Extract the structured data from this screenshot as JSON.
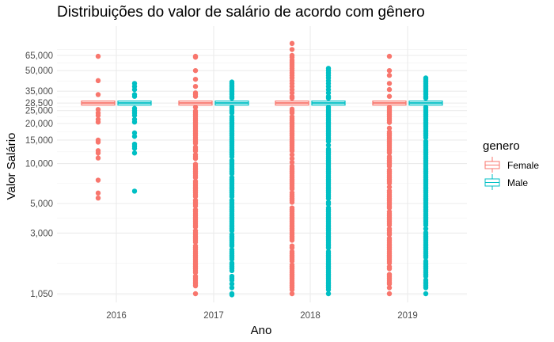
{
  "chart_data": {
    "type": "boxplot",
    "title": "Distribuições do valor de salário de acordo com gênero",
    "xlabel": "Ano",
    "ylabel": "Valor Salário",
    "y_scale": "log10",
    "y_ticks": [
      1050,
      3000,
      5000,
      10000,
      15000,
      20000,
      25000,
      28500,
      35000,
      50000,
      65000
    ],
    "y_tick_labels": [
      "1,050",
      "3,000",
      "5,000",
      "10,000",
      "15,000",
      "20,000",
      "25,000",
      "28,500",
      "35,000",
      "50,000",
      "65,000"
    ],
    "ylim": [
      1000,
      80000
    ],
    "categories": [
      "2016",
      "2017",
      "2018",
      "2019"
    ],
    "grid": true,
    "legend": {
      "title": "genero",
      "position": "right",
      "entries": [
        {
          "name": "Female",
          "color": "#F8766D"
        },
        {
          "name": "Male",
          "color": "#00BFC4"
        }
      ]
    },
    "series": [
      {
        "name": "Female",
        "color": "#F8766D",
        "boxes": [
          {
            "year": "2016",
            "median": 28500,
            "q1": 27500,
            "q3": 29500,
            "outliers": [
              64000,
              42000,
              33000,
              25500,
              24000,
              23000,
              21500,
              20500,
              15000,
              14500,
              12500,
              12000,
              11000,
              7500,
              6000,
              5500
            ]
          },
          {
            "year": "2017",
            "median": 28500,
            "q1": 27500,
            "q3": 29500,
            "outlier_points": [
              64000,
              63000,
              50000,
              43000,
              38000,
              34000,
              33000,
              32000,
              1050
            ],
            "outlier_band": [
              1200,
              26500
            ]
          },
          {
            "year": "2018",
            "median": 28500,
            "q1": 27500,
            "q3": 29500,
            "outlier_points": [
              80000,
              72000,
              65000,
              63000,
              60000,
              58000,
              56000,
              54000,
              52000,
              50000,
              48000,
              46000,
              44000,
              42000,
              40000,
              38000,
              36000,
              34000,
              32000,
              31000,
              1050
            ],
            "outlier_band": [
              1100,
              26500
            ]
          },
          {
            "year": "2019",
            "median": 28500,
            "q1": 27500,
            "q3": 29500,
            "outlier_points": [
              64000,
              50000,
              46000,
              40000,
              36000,
              32000,
              1050
            ],
            "outlier_band": [
              1150,
              26500
            ]
          }
        ]
      },
      {
        "name": "Male",
        "color": "#00BFC4",
        "boxes": [
          {
            "year": "2016",
            "median": 28500,
            "q1": 27500,
            "q3": 29500,
            "outliers": [
              40000,
              38000,
              36000,
              33000,
              32000,
              26000,
              25000,
              24000,
              23000,
              21500,
              20500,
              17000,
              16000,
              14000,
              13500,
              13000,
              12000,
              6200
            ]
          },
          {
            "year": "2017",
            "median": 28500,
            "q1": 27500,
            "q3": 29500,
            "outlier_points": [
              41000,
              40000,
              39000,
              38000,
              37000,
              36000,
              35000,
              34000,
              33000,
              32000,
              31000,
              1050,
              1030
            ],
            "outlier_band": [
              1150,
              26500
            ]
          },
          {
            "year": "2018",
            "median": 28500,
            "q1": 27500,
            "q3": 29500,
            "outlier_points": [
              52000,
              50000,
              48000,
              46000,
              44000,
              42000,
              40000,
              38000,
              36000,
              34000,
              32000,
              31000,
              1050
            ],
            "outlier_band": [
              1100,
              26500
            ]
          },
          {
            "year": "2019",
            "median": 28500,
            "q1": 27500,
            "q3": 29500,
            "outlier_points": [
              44000,
              43000,
              42000,
              41000,
              40000,
              39000,
              38000,
              37000,
              36000,
              35000,
              34000,
              33000,
              32000,
              31000,
              1050
            ],
            "outlier_band": [
              1150,
              26500
            ]
          }
        ]
      }
    ]
  }
}
